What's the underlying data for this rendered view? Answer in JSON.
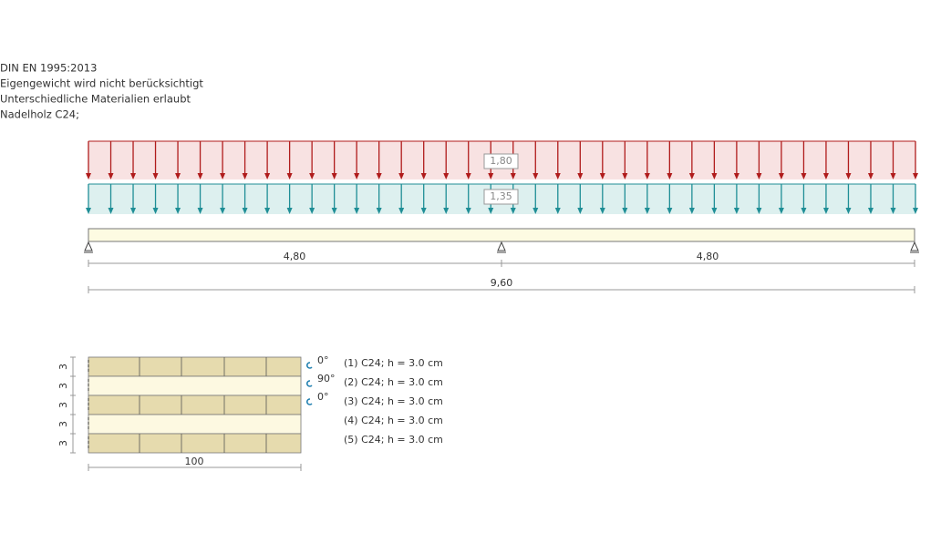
{
  "header": {
    "lines": [
      "DIN EN 1995:2013",
      "Eigengewicht wird nicht berücksichtigt",
      "Unterschiedliche Materialien erlaubt",
      "Nadelholz C24;"
    ]
  },
  "loads": [
    {
      "label": "1,80"
    },
    {
      "label": "1,35"
    }
  ],
  "spans": [
    "4,80",
    "4,80"
  ],
  "total": "9,60",
  "section": {
    "layers": [
      {
        "label": "(1) C24; h = 3.0 cm",
        "thickness": "3"
      },
      {
        "label": "(2) C24; h = 3.0 cm",
        "thickness": "3"
      },
      {
        "label": "(3) C24; h = 3.0 cm",
        "thickness": "3"
      },
      {
        "label": "(4) C24; h = 3.0 cm",
        "thickness": "3"
      },
      {
        "label": "(5) C24; h = 3.0 cm",
        "thickness": "3"
      }
    ],
    "angles": [
      "0°",
      "90°",
      "0°"
    ],
    "width": "100"
  }
}
